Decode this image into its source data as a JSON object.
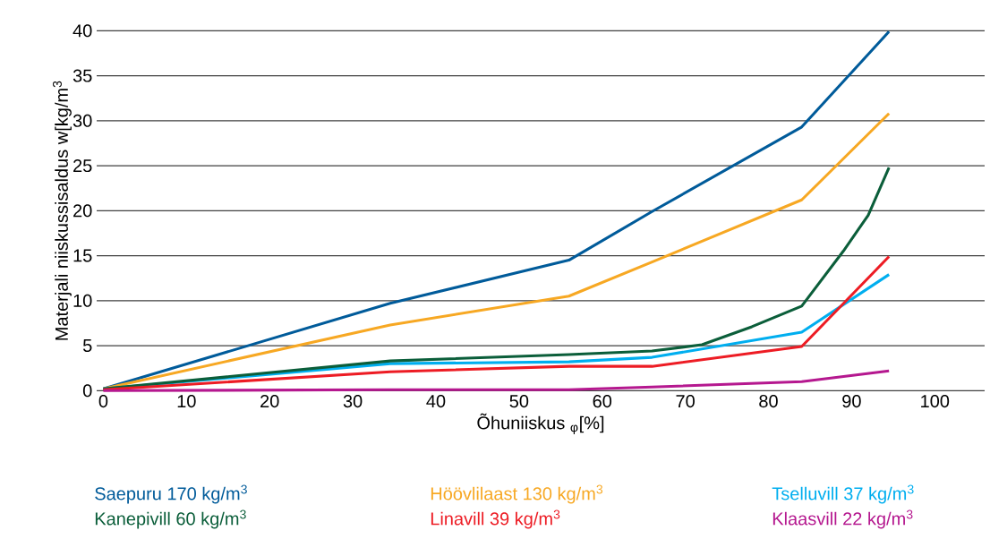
{
  "chart_data": {
    "type": "line",
    "xlabel": "Õhuniiskus $_{φ}$[%]",
    "ylabel": "Materjali niiskussisaldus w[kg/m$^{3}$",
    "xlim": [
      -0.8,
      106
    ],
    "ylim": [
      0,
      40
    ],
    "xticks": [
      0,
      10,
      20,
      30,
      40,
      50,
      60,
      70,
      80,
      90,
      100
    ],
    "yticks": [
      0,
      5,
      10,
      15,
      20,
      25,
      30,
      35,
      40
    ],
    "grid": "y",
    "legend": "bottom",
    "marker": "none",
    "line_style": "solid",
    "series": [
      {
        "name": "Saepuru 170 kg/m$^{3}$",
        "color": "#005b9a",
        "x": [
          0,
          34.5,
          56,
          66,
          84,
          94.5
        ],
        "values": [
          0.2,
          9.7,
          14.5,
          19.9,
          29.3,
          39.9
        ]
      },
      {
        "name": "Höövlilaast 130 kg/m$^{3}$",
        "color": "#f7a823",
        "x": [
          0,
          34.5,
          56,
          66,
          84,
          94.5
        ],
        "values": [
          0.2,
          7.3,
          10.5,
          14.3,
          21.2,
          30.8
        ]
      },
      {
        "name": "Tselluvill 37 kg/m$^{3}$",
        "color": "#00aeef",
        "x": [
          0,
          34.5,
          56,
          66,
          84,
          94.5
        ],
        "values": [
          0.2,
          3.0,
          3.2,
          3.7,
          6.5,
          12.9
        ]
      },
      {
        "name": "Kanepivill 60 kg/m$^{3}$",
        "color": "#0b5e3a",
        "x": [
          0,
          34.5,
          56,
          66,
          72,
          78,
          84,
          89,
          92,
          94.5
        ],
        "values": [
          0.2,
          3.3,
          4.0,
          4.4,
          5.1,
          7.1,
          9.4,
          15.5,
          19.5,
          24.8
        ]
      },
      {
        "name": "Linavill 39 kg/m$^{3}$",
        "color": "#ed1c24",
        "x": [
          0,
          34.5,
          56,
          66,
          84,
          94.5
        ],
        "values": [
          0.1,
          2.1,
          2.7,
          2.7,
          4.9,
          14.9
        ]
      },
      {
        "name": "Klaasvill 22 kg/m$^{3}$",
        "color": "#b5188f",
        "x": [
          0,
          34.5,
          56,
          66,
          84,
          94.5
        ],
        "values": [
          0,
          0.1,
          0.1,
          0.4,
          1.0,
          2.2
        ]
      }
    ]
  }
}
